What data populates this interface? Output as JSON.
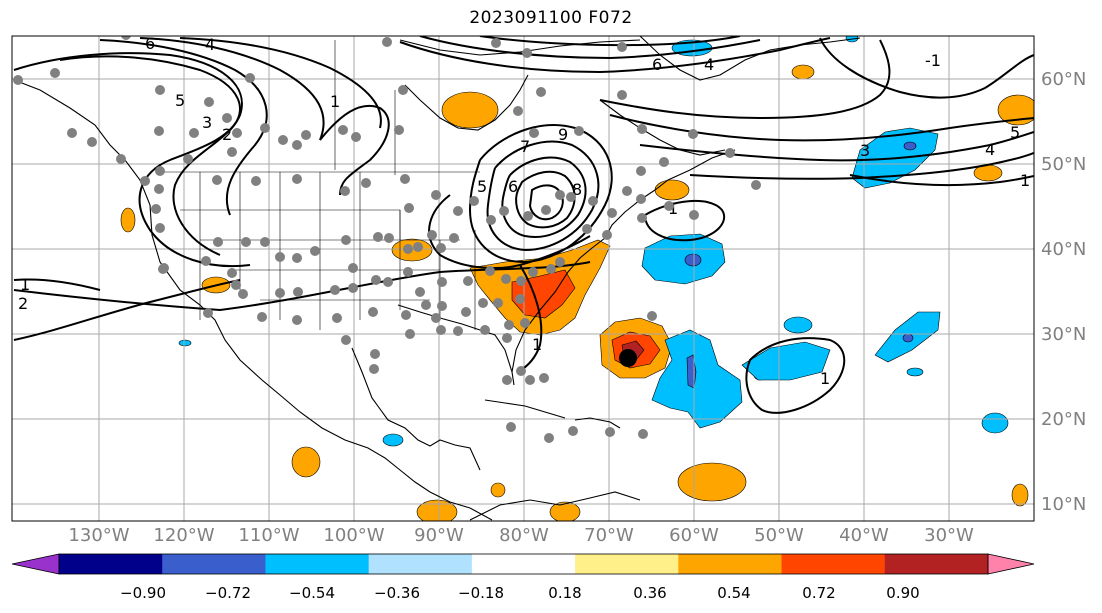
{
  "title": "2023091100 F072",
  "lat_labels": [
    "60°N",
    "50°N",
    "40°N",
    "30°N",
    "20°N",
    "10°N"
  ],
  "lon_labels": [
    "130°W",
    "120°W",
    "110°W",
    "100°W",
    "90°W",
    "80°W",
    "70°W",
    "60°W",
    "50°W",
    "40°W",
    "30°W"
  ],
  "colorbar": {
    "ticks": [
      "−0.90",
      "−0.72",
      "−0.54",
      "−0.36",
      "−0.18",
      "0.18",
      "0.36",
      "0.54",
      "0.72",
      "0.90"
    ],
    "colors": [
      "#9932cc",
      "#00008b",
      "#3a5fcd",
      "#00bfff",
      "#b0e2ff",
      "#ffffff",
      "#fff08a",
      "#ffa500",
      "#ff4500",
      "#b22222",
      "#ff82ab"
    ]
  },
  "contour_labels": [
    "6",
    "4",
    "5",
    "3",
    "2",
    "1",
    "5",
    "6",
    "7",
    "8",
    "9",
    "4",
    "6",
    "4",
    "5",
    "3",
    "1",
    "1",
    "1",
    "1",
    "1",
    "2",
    "-1"
  ],
  "storm_marker": "tropical-cyclone-center"
}
